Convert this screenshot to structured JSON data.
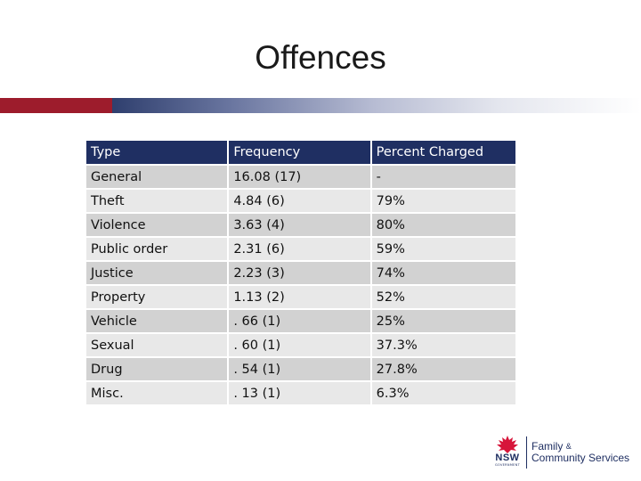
{
  "slide": {
    "title": "Offences"
  },
  "table": {
    "headers": [
      "Type",
      "Frequency",
      "Percent Charged"
    ],
    "rows": [
      [
        "General",
        "16.08 (17)",
        "-"
      ],
      [
        "Theft",
        "4.84 (6)",
        "79%"
      ],
      [
        "Violence",
        "3.63 (4)",
        "80%"
      ],
      [
        "Public order",
        "2.31 (6)",
        "59%"
      ],
      [
        "Justice",
        "2.23 (3)",
        "74%"
      ],
      [
        "Property",
        "1.13 (2)",
        "52%"
      ],
      [
        "Vehicle",
        ". 66 (1)",
        "25%"
      ],
      [
        "Sexual",
        ". 60 (1)",
        "37.3%"
      ],
      [
        "Drug",
        ". 54 (1)",
        "27.8%"
      ],
      [
        "Misc.",
        ". 13 (1)",
        "6.3%"
      ]
    ]
  },
  "logo": {
    "agency_short": "NSW",
    "agency_sub": "GOVERNMENT",
    "line1_a": "Family",
    "line1_amp": "&",
    "line2": "Community Services",
    "icon": "waratah-icon"
  },
  "colors": {
    "header_bg": "#1f2f62",
    "row_dark": "#d2d2d2",
    "row_light": "#e8e8e8",
    "accent_red": "#9d1c2c",
    "logo_red": "#d7153a"
  }
}
